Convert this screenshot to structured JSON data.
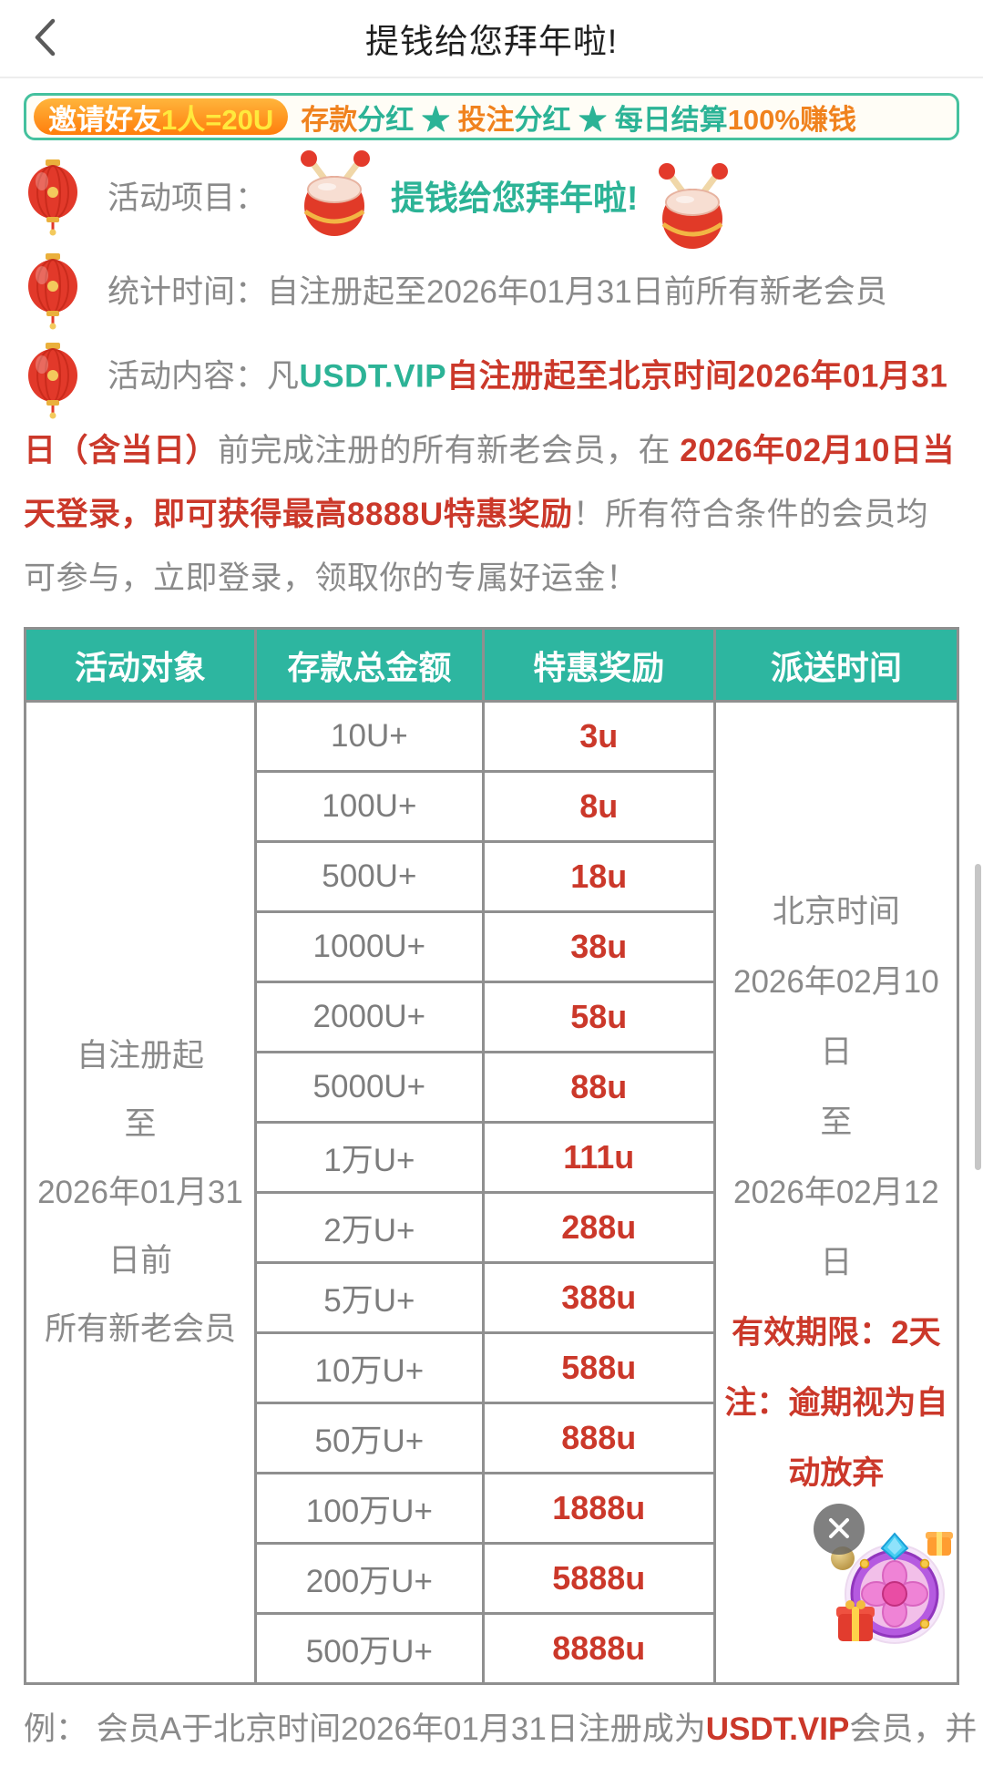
{
  "header": {
    "title": "提钱给您拜年啦!",
    "back_icon": "chevron-left-icon"
  },
  "banner": {
    "pill": [
      {
        "text": "邀请好友",
        "color": "white"
      },
      {
        "text": "1人=20U",
        "color": "yellow"
      }
    ],
    "segments": [
      {
        "text": "存款",
        "color": "orange"
      },
      {
        "text": "分红",
        "color": "teal"
      },
      {
        "text": " ★ ",
        "color": "teal"
      },
      {
        "text": "投注",
        "color": "orange"
      },
      {
        "text": "分红",
        "color": "teal"
      },
      {
        "text": " ★ ",
        "color": "teal"
      },
      {
        "text": "每日结算",
        "color": "teal"
      },
      {
        "text": "100%赚钱",
        "color": "orange"
      }
    ]
  },
  "info": {
    "project": {
      "label": "活动项目：",
      "title": "提钱给您拜年啦!"
    },
    "stats": {
      "label": "统计时间：",
      "text": "自注册起至2026年01月31日前所有新老会员"
    },
    "content": {
      "label": "活动内容：",
      "segments": [
        {
          "text": "凡",
          "color": "gray"
        },
        {
          "text": "USDT.VIP",
          "color": "tealb"
        },
        {
          "text": "自注册起至北京时间2026年01月31日（含当日）",
          "color": "redb"
        },
        {
          "text": "前完成注册的所有新老会员，在 ",
          "color": "gray"
        },
        {
          "text": "2026年02月10日当天登录，即可获得最高8888U特惠奖励",
          "color": "redb"
        },
        {
          "text": "！所有符合条件的会员均可参与，立即登录，领取你的专属好运金！",
          "color": "gray"
        }
      ]
    }
  },
  "table": {
    "headers": [
      "活动对象",
      "存款总金额",
      "特惠奖励",
      "派送时间"
    ],
    "target_lines": [
      "自注册起",
      "至",
      "2026年01月31",
      "日前",
      "所有新老会员"
    ],
    "rows": [
      {
        "amount": "10U+",
        "reward": "3u"
      },
      {
        "amount": "100U+",
        "reward": "8u"
      },
      {
        "amount": "500U+",
        "reward": "18u"
      },
      {
        "amount": "1000U+",
        "reward": "38u"
      },
      {
        "amount": "2000U+",
        "reward": "58u"
      },
      {
        "amount": "5000U+",
        "reward": "88u"
      },
      {
        "amount": "1万U+",
        "reward": "111u"
      },
      {
        "amount": "2万U+",
        "reward": "288u"
      },
      {
        "amount": "5万U+",
        "reward": "388u"
      },
      {
        "amount": "10万U+",
        "reward": "588u"
      },
      {
        "amount": "50万U+",
        "reward": "888u"
      },
      {
        "amount": "100万U+",
        "reward": "1888u"
      },
      {
        "amount": "200万U+",
        "reward": "5888u"
      },
      {
        "amount": "500万U+",
        "reward": "8888u"
      }
    ],
    "delivery": {
      "gray_lines": [
        "北京时间",
        "2026年02月10",
        "日",
        "至",
        "2026年02月12",
        "日"
      ],
      "red_lines": [
        "有效期限：2天",
        "注：逾期视为自",
        "动放弃"
      ]
    }
  },
  "example": {
    "segments": [
      {
        "text": "例： 会员A于北京时间2026年01月31日注册成为",
        "color": "gray"
      },
      {
        "text": "USDT.VIP",
        "color": "redb"
      },
      {
        "text": "会员，并",
        "color": "gray"
      }
    ]
  },
  "icons": {
    "lantern": "lantern-icon",
    "drum": "drum-icon",
    "close": "close-icon",
    "wheel": "prize-wheel-icon"
  },
  "colors": {
    "teal_accent": "#2cb396",
    "table_header_teal": "#2db6a0",
    "orange_accent": "#f0821e",
    "red_accent": "#cb382a",
    "gray_text": "#8a8a8a",
    "banner_border": "#45c19e",
    "pill_yellow": "#ffe93d"
  }
}
